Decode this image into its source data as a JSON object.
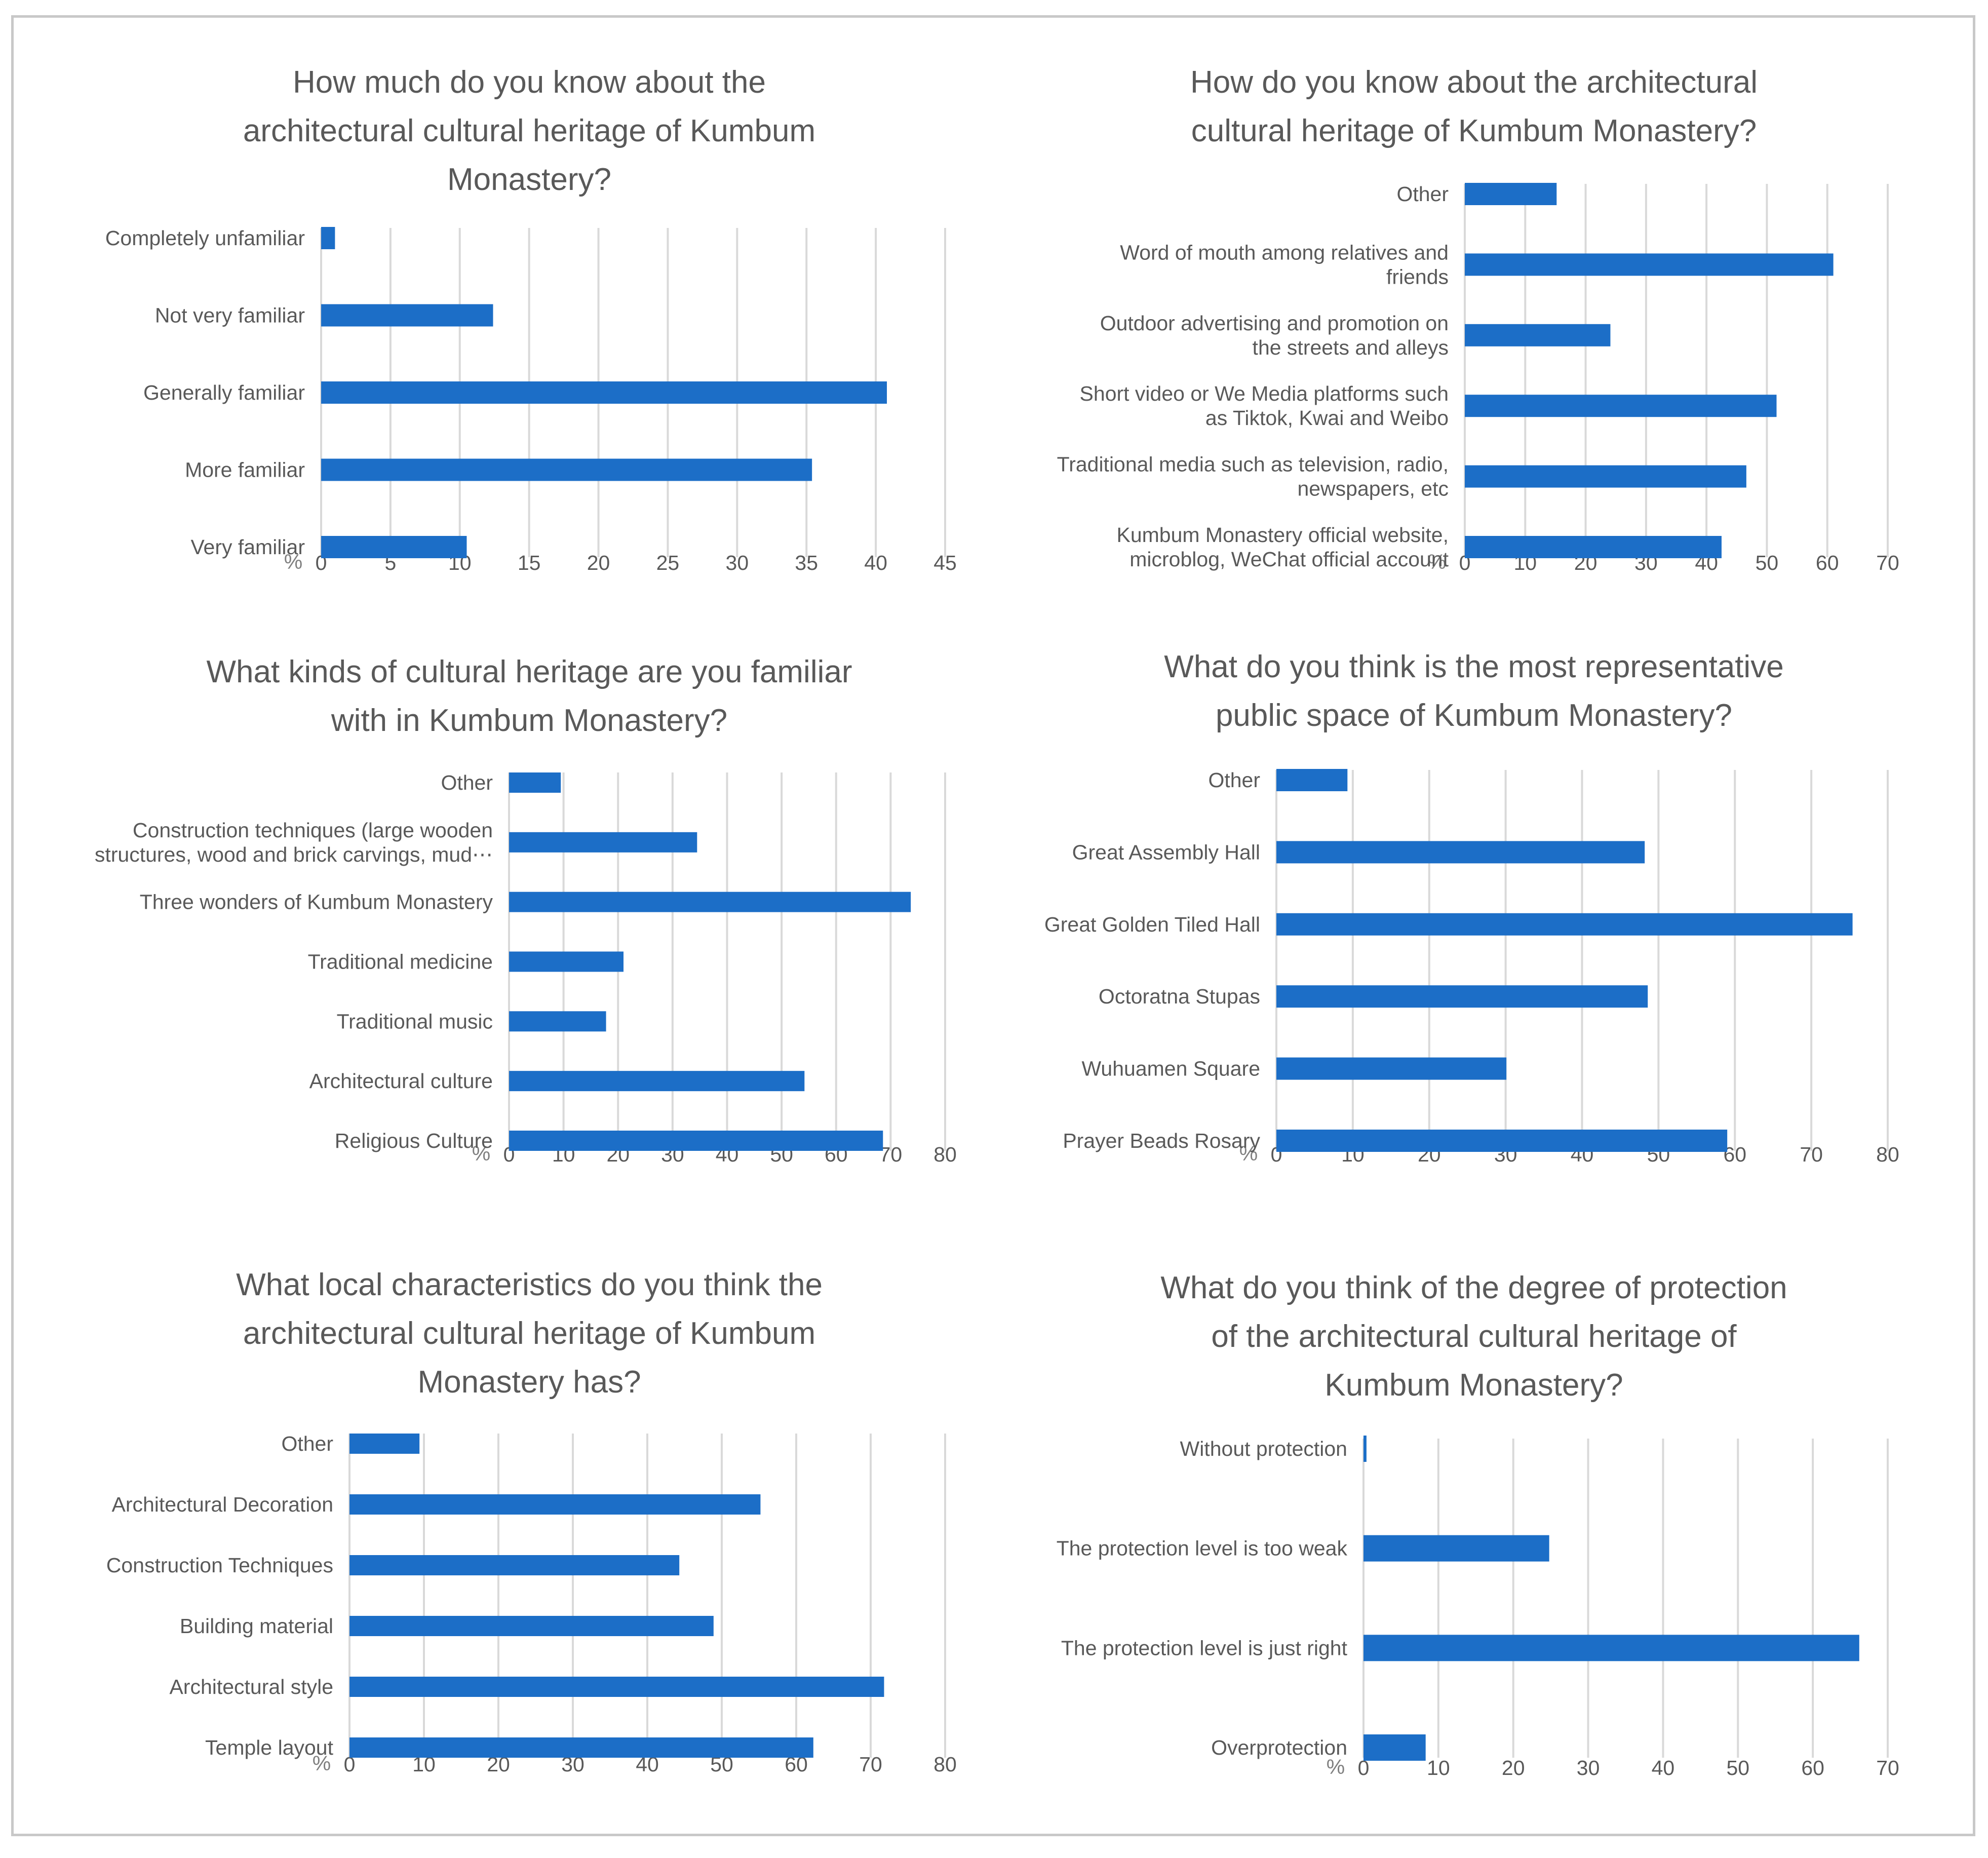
{
  "colors": {
    "bar": "#1c6ec7",
    "grid": "#d9d9d9",
    "text": "#595959",
    "frame": "#c8c8c8"
  },
  "chart_data": [
    {
      "id": "familiarity",
      "type": "bar",
      "orientation": "horizontal",
      "title": "How much do you know about the architectural cultural heritage of Kumbum Monastery?",
      "title_lines": [
        "How much do you know about the",
        "architectural cultural heritage of Kumbum",
        "Monastery?"
      ],
      "unit_label": "%",
      "xlim": [
        0,
        45
      ],
      "ticks": [
        0,
        5,
        10,
        15,
        20,
        25,
        30,
        35,
        40,
        45
      ],
      "categories": [
        {
          "label": [
            "Completely unfamiliar"
          ],
          "value": 1.0
        },
        {
          "label": [
            "Not very familiar"
          ],
          "value": 12.4
        },
        {
          "label": [
            "Generally familiar"
          ],
          "value": 40.8
        },
        {
          "label": [
            "More familiar"
          ],
          "value": 35.4
        },
        {
          "label": [
            "Very familiar"
          ],
          "value": 10.5
        }
      ]
    },
    {
      "id": "sources",
      "type": "bar",
      "orientation": "horizontal",
      "title": "How do you know about the architectural cultural heritage of Kumbum Monastery?",
      "title_lines": [
        "How do you know about the architectural",
        "cultural heritage of Kumbum Monastery?"
      ],
      "unit_label": "%",
      "xlim": [
        0,
        70
      ],
      "ticks": [
        0,
        10,
        20,
        30,
        40,
        50,
        60,
        70
      ],
      "categories": [
        {
          "label": [
            "Other"
          ],
          "value": 15.2
        },
        {
          "label": [
            "Word of mouth among relatives and",
            "friends"
          ],
          "value": 61.0
        },
        {
          "label": [
            "Outdoor advertising and promotion on",
            "the streets and alleys"
          ],
          "value": 24.1
        },
        {
          "label": [
            "Short video or We Media platforms such",
            "as Tiktok, Kwai and Weibo"
          ],
          "value": 51.6
        },
        {
          "label": [
            "Traditional media such as television, radio,",
            "newspapers, etc"
          ],
          "value": 46.6
        },
        {
          "label": [
            "Kumbum Monastery official website,",
            "microblog, WeChat official account"
          ],
          "value": 42.5
        }
      ]
    },
    {
      "id": "heritage-kinds",
      "type": "bar",
      "orientation": "horizontal",
      "title": "What kinds of cultural heritage are you familiar with in Kumbum Monastery?",
      "title_lines": [
        "What kinds of cultural heritage are you familiar",
        "with in Kumbum Monastery?"
      ],
      "unit_label": "%",
      "xlim": [
        0,
        80
      ],
      "ticks": [
        0,
        10,
        20,
        30,
        40,
        50,
        60,
        70,
        80
      ],
      "categories": [
        {
          "label": [
            "Other"
          ],
          "value": 9.5
        },
        {
          "label": [
            "Construction techniques (large wooden",
            "structures, wood and brick carvings, mud⋯"
          ],
          "value": 34.5
        },
        {
          "label": [
            "Three wonders of Kumbum Monastery"
          ],
          "value": 73.7
        },
        {
          "label": [
            "Traditional medicine"
          ],
          "value": 21.0
        },
        {
          "label": [
            "Traditional music"
          ],
          "value": 17.8
        },
        {
          "label": [
            "Architectural culture"
          ],
          "value": 54.2
        },
        {
          "label": [
            "Religious Culture"
          ],
          "value": 68.6
        }
      ]
    },
    {
      "id": "public-space",
      "type": "bar",
      "orientation": "horizontal",
      "title": "What do you think is the most representative public space of Kumbum Monastery?",
      "title_lines": [
        "What do you think is the most representative",
        "public space of Kumbum Monastery?"
      ],
      "unit_label": "%",
      "xlim": [
        0,
        80
      ],
      "ticks": [
        0,
        10,
        20,
        30,
        40,
        50,
        60,
        70,
        80
      ],
      "categories": [
        {
          "label": [
            "Other"
          ],
          "value": 9.3
        },
        {
          "label": [
            "Great Assembly Hall"
          ],
          "value": 48.2
        },
        {
          "label": [
            "Great Golden Tiled Hall"
          ],
          "value": 75.4
        },
        {
          "label": [
            "Octoratna Stupas"
          ],
          "value": 48.6
        },
        {
          "label": [
            "Wuhuamen Square"
          ],
          "value": 30.1
        },
        {
          "label": [
            "Prayer Beads  Rosary"
          ],
          "value": 59.0
        }
      ]
    },
    {
      "id": "local-characteristics",
      "type": "bar",
      "orientation": "horizontal",
      "title": "What local characteristics do you think the architectural cultural heritage of Kumbum Monastery has?",
      "title_lines": [
        "What local characteristics do you think the",
        "architectural cultural heritage of Kumbum",
        "Monastery has?"
      ],
      "unit_label": "%",
      "xlim": [
        0,
        80
      ],
      "ticks": [
        0,
        10,
        20,
        30,
        40,
        50,
        60,
        70,
        80
      ],
      "categories": [
        {
          "label": [
            "Other"
          ],
          "value": 9.4
        },
        {
          "label": [
            "Architectural Decoration"
          ],
          "value": 55.2
        },
        {
          "label": [
            "Construction Techniques"
          ],
          "value": 44.3
        },
        {
          "label": [
            "Building material"
          ],
          "value": 48.9
        },
        {
          "label": [
            "Architectural style"
          ],
          "value": 71.8
        },
        {
          "label": [
            "Temple layout"
          ],
          "value": 62.3
        }
      ]
    },
    {
      "id": "protection",
      "type": "bar",
      "orientation": "horizontal",
      "title": "What do you think of the degree of protection of the architectural cultural heritage of Kumbum Monastery?",
      "title_lines": [
        "What do you think of the degree of protection",
        "of the architectural cultural heritage of",
        "Kumbum Monastery?"
      ],
      "unit_label": "%",
      "xlim": [
        0,
        70
      ],
      "ticks": [
        0,
        10,
        20,
        30,
        40,
        50,
        60,
        70
      ],
      "categories": [
        {
          "label": [
            "Without protection"
          ],
          "value": 0.4
        },
        {
          "label": [
            "The protection level is too weak"
          ],
          "value": 24.8
        },
        {
          "label": [
            "The protection level is just right"
          ],
          "value": 66.2
        },
        {
          "label": [
            "Overprotection"
          ],
          "value": 8.3
        }
      ]
    }
  ]
}
